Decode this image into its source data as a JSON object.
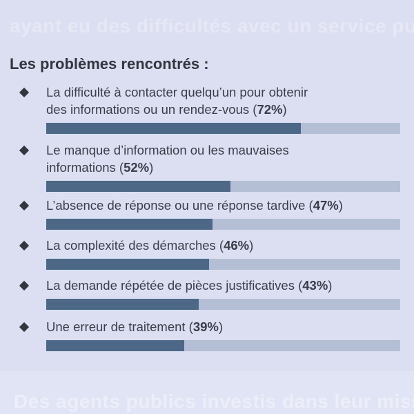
{
  "ghost_top": "ayant eu des difficultés avec un service public",
  "ghost_bottom": "Des agents publics investis dans leur mission",
  "chart_data": {
    "type": "bar",
    "title": "Les problèmes rencontrés :",
    "xlabel": "",
    "ylabel": "",
    "ylim": [
      0,
      100
    ],
    "unit": "%",
    "colors": {
      "fill": "#4c6886",
      "track": "#b4bfd5"
    },
    "items": [
      {
        "line1": "La difficulté à contacter quelqu’un pour obtenir",
        "line2": "des informations ou un rendez-vous",
        "value": 72,
        "value_label": "72%"
      },
      {
        "line1": "Le manque d’information ou les mauvaises",
        "line2": "informations",
        "value": 52,
        "value_label": "52%"
      },
      {
        "line1": "L’absence de réponse ou une réponse tardive",
        "line2": "",
        "value": 47,
        "value_label": "47%"
      },
      {
        "line1": "La complexité des démarches",
        "line2": "",
        "value": 46,
        "value_label": "46%"
      },
      {
        "line1": "La demande répétée de pièces justificatives",
        "line2": "",
        "value": 43,
        "value_label": "43%"
      },
      {
        "line1": "Une erreur de traitement",
        "line2": "",
        "value": 39,
        "value_label": "39%"
      }
    ]
  }
}
